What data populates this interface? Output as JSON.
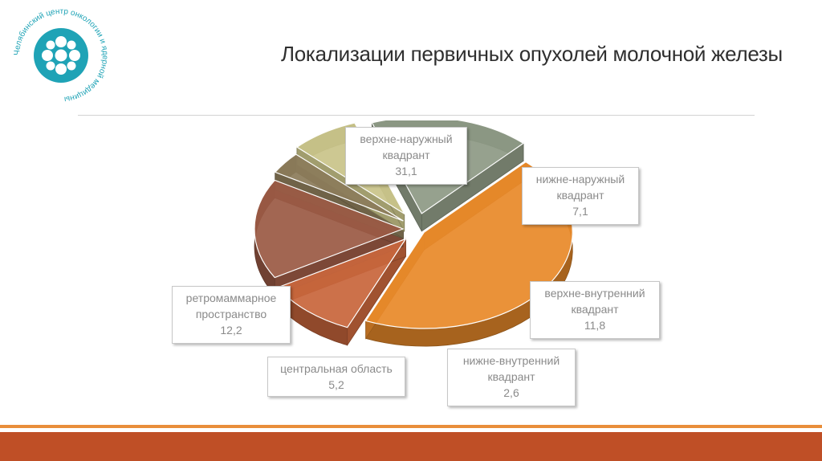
{
  "logo": {
    "text": "Челябинский центр онкологии и ядерной медицины",
    "color": "#1fa3b6"
  },
  "slide": {
    "title": "Локализации первичных опухолей молочной железы"
  },
  "chart_data": {
    "type": "pie",
    "style": "3d-exploded",
    "series": [
      {
        "name": "верхне-наружный квадрант",
        "value": 31.1,
        "value_label": "31,1",
        "line1": "верхне-наружный",
        "line2": "квадрант",
        "color": "#e88a2a"
      },
      {
        "name": "нижне-наружный квадрант",
        "value": 7.1,
        "value_label": "7,1",
        "line1": "нижне-наружный",
        "line2": "квадрант",
        "color": "#c8663c"
      },
      {
        "name": "верхне-внутренний квадрант",
        "value": 11.8,
        "value_label": "11,8",
        "line1": "верхне-внутренний",
        "line2": "квадрант",
        "color": "#9b5a45"
      },
      {
        "name": "нижне-внутренний квадрант",
        "value": 2.6,
        "value_label": "2,6",
        "line1": "нижне-внутренний",
        "line2": "квадрант",
        "color": "#8c7c5a"
      },
      {
        "name": "центральная область",
        "value": 5.2,
        "value_label": "5,2",
        "line1": "центральная область",
        "line2": "",
        "color": "#c9c48a"
      },
      {
        "name": "ретромаммарное пространство",
        "value": 12.2,
        "value_label": "12,2",
        "line1": "ретромаммарное",
        "line2": "пространство",
        "color": "#8e9a85"
      }
    ]
  },
  "footer": {
    "accent": "#bf4f26",
    "thin_line": "#e98e3a"
  }
}
